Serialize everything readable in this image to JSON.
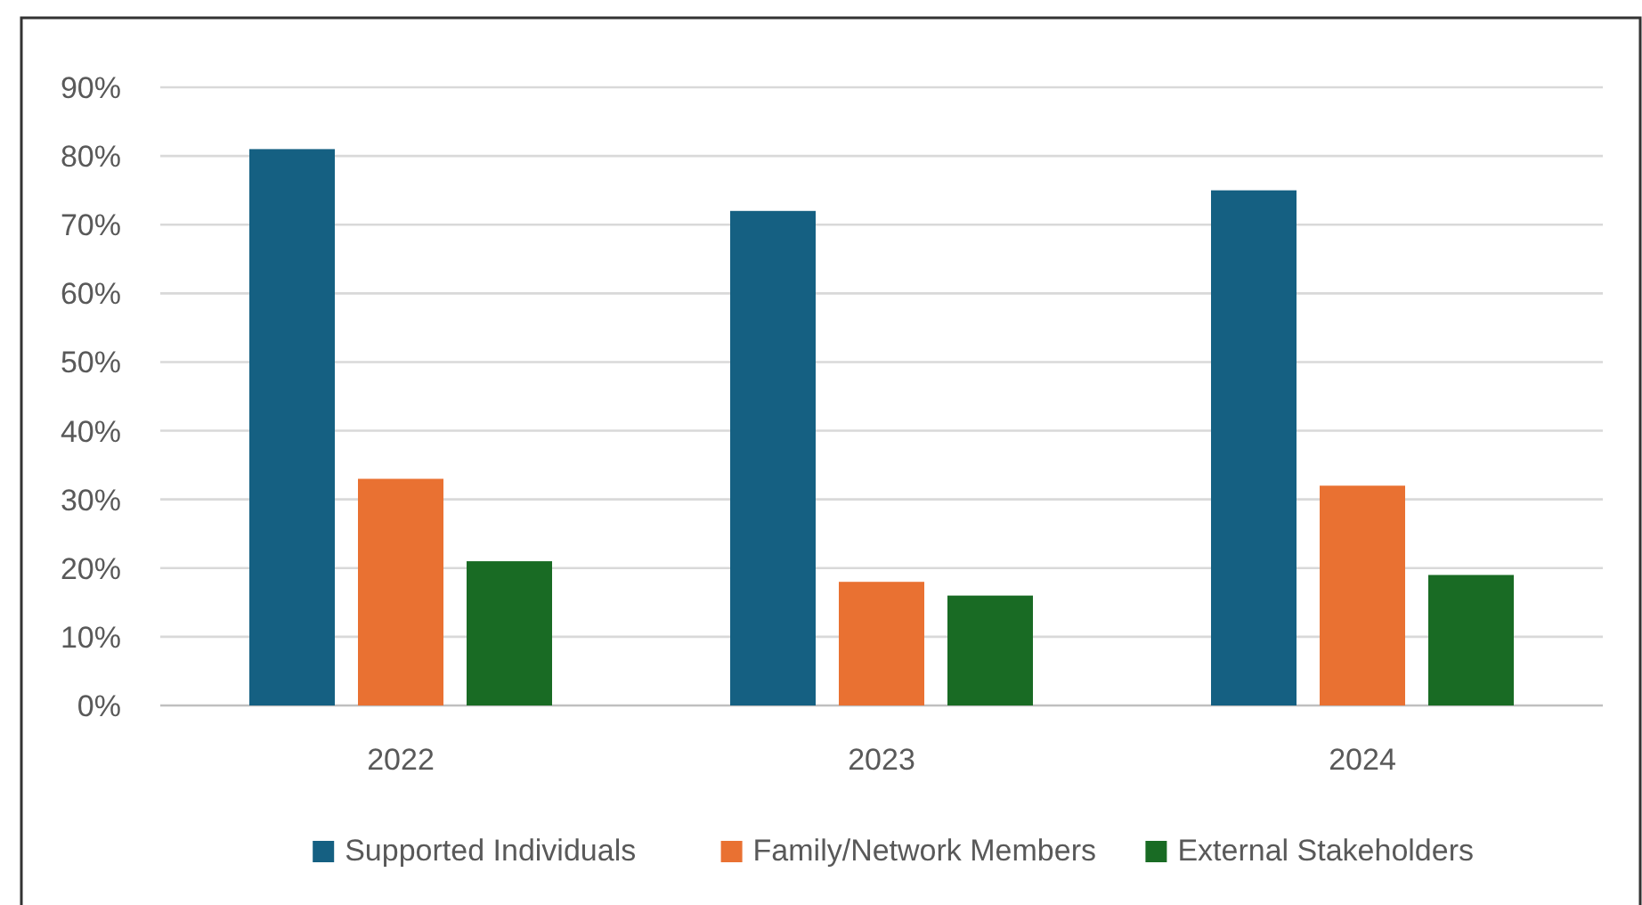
{
  "chart_data": {
    "type": "bar",
    "categories": [
      "2022",
      "2023",
      "2024"
    ],
    "series": [
      {
        "name": "Supported Individuals",
        "color": "#156082",
        "values": [
          81,
          72,
          75
        ]
      },
      {
        "name": "Family/Network Members",
        "color": "#e97132",
        "values": [
          33,
          18,
          32
        ]
      },
      {
        "name": "External Stakeholders",
        "color": "#196b24",
        "values": [
          21,
          16,
          19
        ]
      }
    ],
    "ylim": [
      0,
      90
    ],
    "yticks": [
      {
        "value": 0,
        "label": "0%"
      },
      {
        "value": 10,
        "label": "10%"
      },
      {
        "value": 20,
        "label": "20%"
      },
      {
        "value": 30,
        "label": "30%"
      },
      {
        "value": 40,
        "label": "40%"
      },
      {
        "value": 50,
        "label": "50%"
      },
      {
        "value": 60,
        "label": "60%"
      },
      {
        "value": 70,
        "label": "70%"
      },
      {
        "value": 80,
        "label": "80%"
      },
      {
        "value": 90,
        "label": "90%"
      }
    ],
    "grid": "y",
    "legend": "bottom"
  }
}
